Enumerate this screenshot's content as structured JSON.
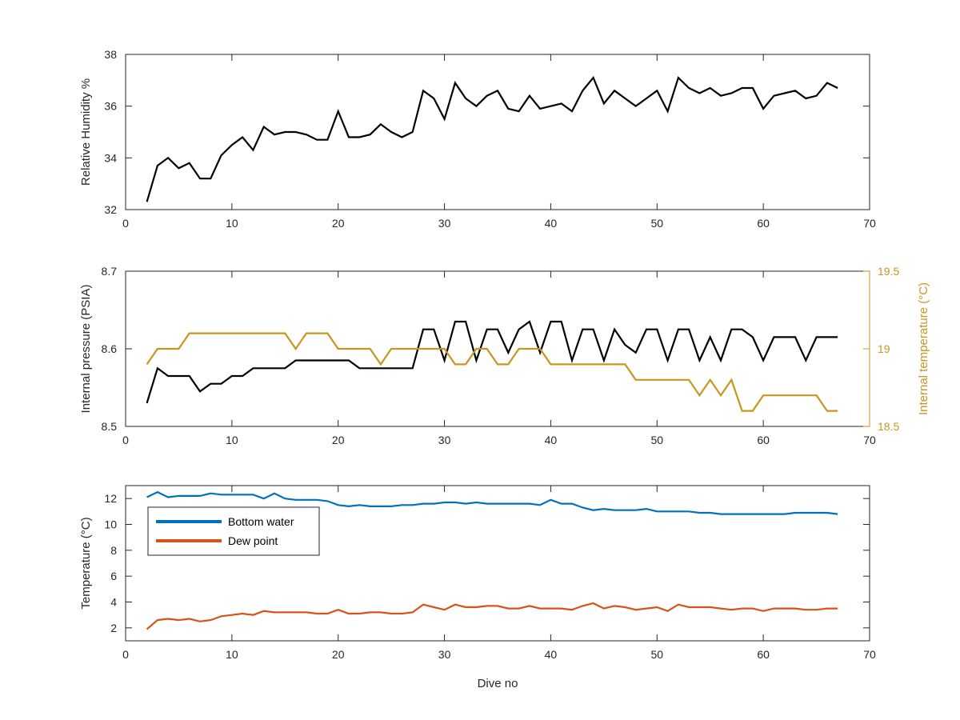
{
  "chart_data": [
    {
      "type": "line",
      "xlabel": "",
      "ylabel": "Relative Humidity %",
      "xlim": [
        0,
        70
      ],
      "ylim": [
        32,
        38
      ],
      "xticks": [
        "0",
        "10",
        "20",
        "30",
        "40",
        "50",
        "60",
        "70"
      ],
      "yticks": [
        "32",
        "34",
        "36",
        "38"
      ],
      "grid": false,
      "series": [
        {
          "color": "#000000",
          "x": [
            2,
            3,
            4,
            5,
            6,
            7,
            8,
            9,
            10,
            11,
            12,
            13,
            14,
            15,
            16,
            17,
            18,
            19,
            20,
            21,
            22,
            23,
            24,
            25,
            26,
            27,
            28,
            29,
            30,
            31,
            32,
            33,
            34,
            35,
            36,
            37,
            38,
            39,
            40,
            41,
            42,
            43,
            44,
            45,
            46,
            47,
            48,
            49,
            50,
            51,
            52,
            53,
            54,
            55,
            56,
            57,
            58,
            59,
            60,
            61,
            62,
            63,
            64,
            65,
            66,
            67
          ],
          "y": [
            32.3,
            33.7,
            34.0,
            33.6,
            33.8,
            33.2,
            33.2,
            34.1,
            34.5,
            34.8,
            34.3,
            35.2,
            34.9,
            35.0,
            35.0,
            34.9,
            34.7,
            34.7,
            35.8,
            34.8,
            34.8,
            34.9,
            35.3,
            35.0,
            34.8,
            35.0,
            36.6,
            36.3,
            35.5,
            36.9,
            36.3,
            36.0,
            36.4,
            36.6,
            35.9,
            35.8,
            36.4,
            35.9,
            36.0,
            36.1,
            35.8,
            36.6,
            37.1,
            36.1,
            36.6,
            36.3,
            36.0,
            36.3,
            36.6,
            35.8,
            37.1,
            36.7,
            36.5,
            36.7,
            36.4,
            36.5,
            36.7,
            36.7,
            35.9,
            36.4,
            36.5,
            36.6,
            36.3,
            36.4,
            36.9,
            36.7
          ]
        }
      ]
    },
    {
      "type": "line",
      "xlabel": "",
      "ylabel": "Internal pressure (PSIA)",
      "ylabel_right": "Internal temperature (°C)",
      "xlim": [
        0,
        70
      ],
      "ylim": [
        8.5,
        8.7
      ],
      "ylim_right": [
        18.5,
        19.5
      ],
      "xticks": [
        "0",
        "10",
        "20",
        "30",
        "40",
        "50",
        "60",
        "70"
      ],
      "yticks": [
        "8.5",
        "8.6",
        "8.7"
      ],
      "yticks_right": [
        "18.5",
        "19",
        "19.5"
      ],
      "grid": false,
      "series": [
        {
          "color": "#000000",
          "axis": "left",
          "x": [
            2,
            3,
            4,
            5,
            6,
            7,
            8,
            9,
            10,
            11,
            12,
            13,
            14,
            15,
            16,
            17,
            18,
            19,
            20,
            21,
            22,
            23,
            24,
            25,
            26,
            27,
            28,
            29,
            30,
            31,
            32,
            33,
            34,
            35,
            36,
            37,
            38,
            39,
            40,
            41,
            42,
            43,
            44,
            45,
            46,
            47,
            48,
            49,
            50,
            51,
            52,
            53,
            54,
            55,
            56,
            57,
            58,
            59,
            60,
            61,
            62,
            63,
            64,
            65,
            66,
            67
          ],
          "y": [
            8.53,
            8.575,
            8.565,
            8.565,
            8.565,
            8.545,
            8.555,
            8.555,
            8.565,
            8.565,
            8.575,
            8.575,
            8.575,
            8.575,
            8.585,
            8.585,
            8.585,
            8.585,
            8.585,
            8.585,
            8.575,
            8.575,
            8.575,
            8.575,
            8.575,
            8.575,
            8.625,
            8.625,
            8.585,
            8.635,
            8.635,
            8.585,
            8.625,
            8.625,
            8.595,
            8.625,
            8.635,
            8.595,
            8.635,
            8.635,
            8.585,
            8.625,
            8.625,
            8.585,
            8.625,
            8.605,
            8.595,
            8.625,
            8.625,
            8.585,
            8.625,
            8.625,
            8.585,
            8.615,
            8.585,
            8.625,
            8.625,
            8.615,
            8.585,
            8.615,
            8.615,
            8.615,
            8.585,
            8.615,
            8.615,
            8.615
          ]
        },
        {
          "color": "#c8961e",
          "axis": "right",
          "x": [
            2,
            3,
            4,
            5,
            6,
            7,
            8,
            9,
            10,
            11,
            12,
            13,
            14,
            15,
            16,
            17,
            18,
            19,
            20,
            21,
            22,
            23,
            24,
            25,
            26,
            27,
            28,
            29,
            30,
            31,
            32,
            33,
            34,
            35,
            36,
            37,
            38,
            39,
            40,
            41,
            42,
            43,
            44,
            45,
            46,
            47,
            48,
            49,
            50,
            51,
            52,
            53,
            54,
            55,
            56,
            57,
            58,
            59,
            60,
            61,
            62,
            63,
            64,
            65,
            66,
            67
          ],
          "y": [
            18.9,
            19.0,
            19.0,
            19.0,
            19.1,
            19.1,
            19.1,
            19.1,
            19.1,
            19.1,
            19.1,
            19.1,
            19.1,
            19.1,
            19.0,
            19.1,
            19.1,
            19.1,
            19.0,
            19.0,
            19.0,
            19.0,
            18.9,
            19.0,
            19.0,
            19.0,
            19.0,
            19.0,
            19.0,
            18.9,
            18.9,
            19.0,
            19.0,
            18.9,
            18.9,
            19.0,
            19.0,
            19.0,
            18.9,
            18.9,
            18.9,
            18.9,
            18.9,
            18.9,
            18.9,
            18.9,
            18.8,
            18.8,
            18.8,
            18.8,
            18.8,
            18.8,
            18.7,
            18.8,
            18.7,
            18.8,
            18.6,
            18.6,
            18.7,
            18.7,
            18.7,
            18.7,
            18.7,
            18.7,
            18.6,
            18.6
          ]
        }
      ]
    },
    {
      "type": "line",
      "xlabel": "Dive no",
      "ylabel": "Temperature (°C)",
      "xlim": [
        0,
        70
      ],
      "ylim": [
        1,
        13
      ],
      "xticks": [
        "0",
        "10",
        "20",
        "30",
        "40",
        "50",
        "60",
        "70"
      ],
      "yticks": [
        "2",
        "4",
        "6",
        "8",
        "10",
        "12"
      ],
      "grid": false,
      "legend": "top-left",
      "series": [
        {
          "name": "Bottom water",
          "color": "#0072bd",
          "x": [
            2,
            3,
            4,
            5,
            6,
            7,
            8,
            9,
            10,
            11,
            12,
            13,
            14,
            15,
            16,
            17,
            18,
            19,
            20,
            21,
            22,
            23,
            24,
            25,
            26,
            27,
            28,
            29,
            30,
            31,
            32,
            33,
            34,
            35,
            36,
            37,
            38,
            39,
            40,
            41,
            42,
            43,
            44,
            45,
            46,
            47,
            48,
            49,
            50,
            51,
            52,
            53,
            54,
            55,
            56,
            57,
            58,
            59,
            60,
            61,
            62,
            63,
            64,
            65,
            66,
            67
          ],
          "y": [
            12.1,
            12.5,
            12.1,
            12.2,
            12.2,
            12.2,
            12.4,
            12.3,
            12.3,
            12.3,
            12.3,
            12.0,
            12.4,
            12.0,
            11.9,
            11.9,
            11.9,
            11.8,
            11.5,
            11.4,
            11.5,
            11.4,
            11.4,
            11.4,
            11.5,
            11.5,
            11.6,
            11.6,
            11.7,
            11.7,
            11.6,
            11.7,
            11.6,
            11.6,
            11.6,
            11.6,
            11.6,
            11.5,
            11.9,
            11.6,
            11.6,
            11.3,
            11.1,
            11.2,
            11.1,
            11.1,
            11.1,
            11.2,
            11.0,
            11.0,
            11.0,
            11.0,
            10.9,
            10.9,
            10.8,
            10.8,
            10.8,
            10.8,
            10.8,
            10.8,
            10.8,
            10.9,
            10.9,
            10.9,
            10.9,
            10.8
          ]
        },
        {
          "name": "Dew point",
          "color": "#d95319",
          "x": [
            2,
            3,
            4,
            5,
            6,
            7,
            8,
            9,
            10,
            11,
            12,
            13,
            14,
            15,
            16,
            17,
            18,
            19,
            20,
            21,
            22,
            23,
            24,
            25,
            26,
            27,
            28,
            29,
            30,
            31,
            32,
            33,
            34,
            35,
            36,
            37,
            38,
            39,
            40,
            41,
            42,
            43,
            44,
            45,
            46,
            47,
            48,
            49,
            50,
            51,
            52,
            53,
            54,
            55,
            56,
            57,
            58,
            59,
            60,
            61,
            62,
            63,
            64,
            65,
            66,
            67
          ],
          "y": [
            1.9,
            2.6,
            2.7,
            2.6,
            2.7,
            2.5,
            2.6,
            2.9,
            3.0,
            3.1,
            3.0,
            3.3,
            3.2,
            3.2,
            3.2,
            3.2,
            3.1,
            3.1,
            3.4,
            3.1,
            3.1,
            3.2,
            3.2,
            3.1,
            3.1,
            3.2,
            3.8,
            3.6,
            3.4,
            3.8,
            3.6,
            3.6,
            3.7,
            3.7,
            3.5,
            3.5,
            3.7,
            3.5,
            3.5,
            3.5,
            3.4,
            3.7,
            3.9,
            3.5,
            3.7,
            3.6,
            3.4,
            3.5,
            3.6,
            3.3,
            3.8,
            3.6,
            3.6,
            3.6,
            3.5,
            3.4,
            3.5,
            3.5,
            3.3,
            3.5,
            3.5,
            3.5,
            3.4,
            3.4,
            3.5,
            3.5
          ]
        }
      ]
    }
  ]
}
